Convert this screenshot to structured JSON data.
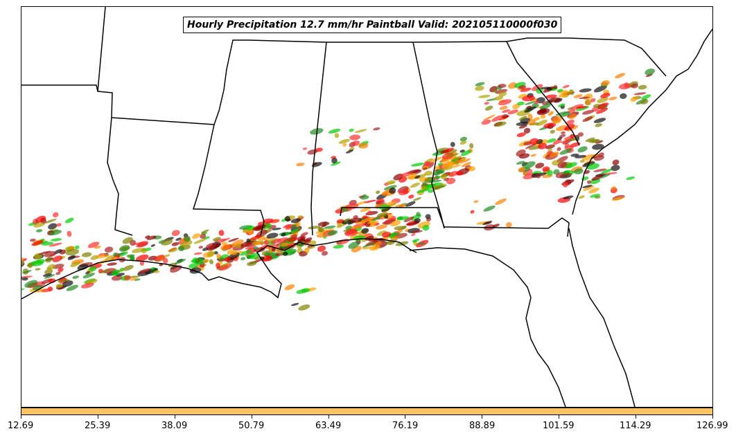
{
  "title": "Hourly Precipitation 12.7 mm/hr Paintball Valid: 202105110000f030",
  "colorbar": {
    "color": "#ffc266",
    "ticks": [
      "12.69",
      "25.39",
      "38.09",
      "50.79",
      "63.49",
      "76.19",
      "88.89",
      "101.59",
      "114.29",
      "126.99"
    ]
  },
  "member_colors": [
    "#ff0000",
    "#ff8000",
    "#808000",
    "#00cc00",
    "#228b22",
    "#8b0000",
    "#111111",
    "#ff3030",
    "#aa1f1f",
    "#b0a000",
    "#ffa000"
  ]
}
